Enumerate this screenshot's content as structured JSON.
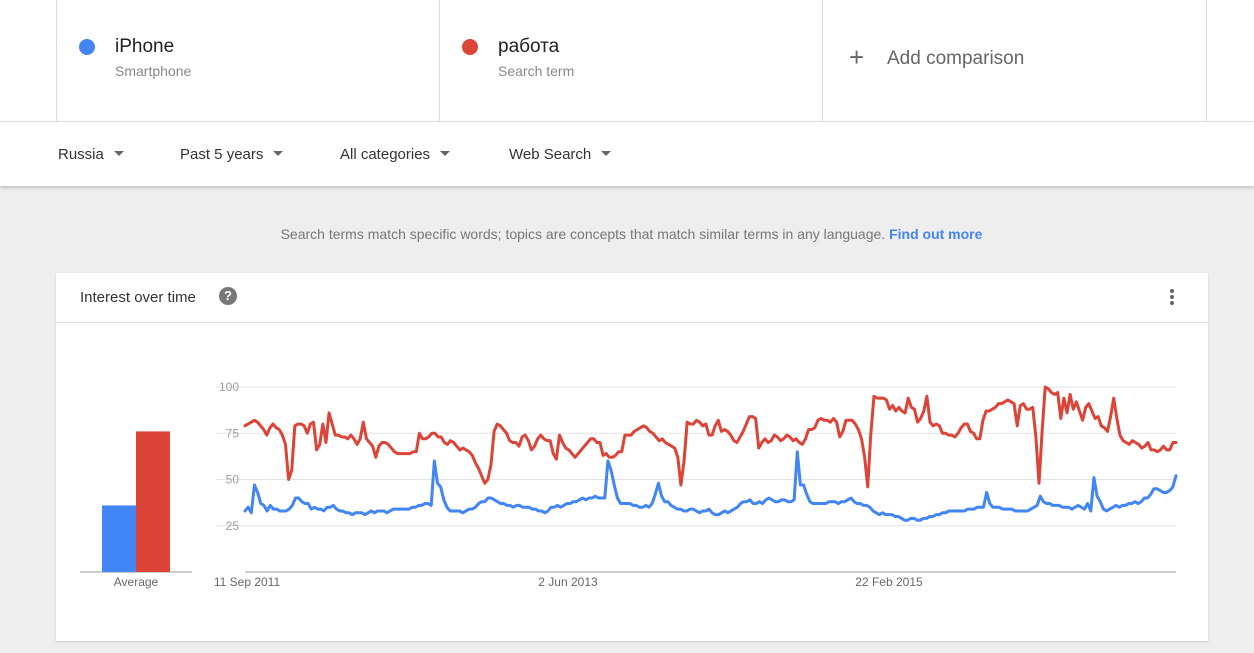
{
  "terms": [
    {
      "name": "iPhone",
      "type": "Smartphone",
      "color": "#4285f4"
    },
    {
      "name": "работа",
      "type": "Search term",
      "color": "#db4437"
    }
  ],
  "add_comparison": {
    "icon": "+",
    "label": "Add comparison"
  },
  "filters": [
    {
      "label": "Russia"
    },
    {
      "label": "Past 5 years"
    },
    {
      "label": "All categories"
    },
    {
      "label": "Web Search"
    }
  ],
  "notice": {
    "text": "Search terms match specific words; topics are concepts that match similar terms in any language.",
    "link": "Find out more"
  },
  "card": {
    "title": "Interest over time",
    "help_icon": "?"
  },
  "chart_data": {
    "type": "line",
    "title": "Interest over time",
    "ylim": [
      0,
      100
    ],
    "y_ticks": [
      25,
      50,
      75,
      100
    ],
    "x_ticks": [
      "11 Sep 2011",
      "2 Jun 2013",
      "22 Feb 2015"
    ],
    "grid": true,
    "averages": {
      "label": "Average",
      "values": [
        {
          "name": "iPhone",
          "value": 36
        },
        {
          "name": "работа",
          "value": 76
        }
      ]
    },
    "series": [
      {
        "name": "iPhone",
        "color": "#4285f4",
        "values": [
          33,
          35,
          32,
          47,
          43,
          37,
          36,
          33,
          36,
          34,
          34,
          33,
          33,
          33,
          34,
          36,
          40,
          40,
          38,
          37,
          37,
          34,
          35,
          34,
          34,
          33,
          35,
          35,
          36,
          34,
          33,
          33,
          32,
          32,
          31,
          32,
          32,
          32,
          31,
          32,
          33,
          32,
          33,
          33,
          33,
          32,
          33,
          34,
          34,
          34,
          34,
          34,
          34,
          35,
          35,
          36,
          36,
          37,
          37,
          36,
          60,
          48,
          46,
          39,
          35,
          33,
          33,
          33,
          33,
          32,
          33,
          34,
          34,
          35,
          37,
          38,
          38,
          40,
          40,
          39,
          38,
          37,
          37,
          36,
          36,
          35,
          36,
          36,
          35,
          35,
          35,
          34,
          34,
          33,
          33,
          32,
          33,
          35,
          35,
          36,
          35,
          36,
          37,
          37,
          38,
          38,
          39,
          40,
          39,
          40,
          40,
          41,
          40,
          40,
          40,
          60,
          55,
          47,
          40,
          37,
          37,
          37,
          37,
          36,
          36,
          35,
          35,
          36,
          35,
          37,
          42,
          48,
          41,
          38,
          38,
          36,
          35,
          34,
          34,
          33,
          33,
          34,
          34,
          33,
          32,
          33,
          33,
          34,
          32,
          31,
          31,
          32,
          33,
          32,
          33,
          34,
          35,
          37,
          38,
          38,
          39,
          37,
          37,
          38,
          37,
          39,
          40,
          39,
          38,
          38,
          39,
          39,
          38,
          38,
          39,
          65,
          47,
          47,
          42,
          38,
          37,
          37,
          37,
          37,
          37,
          38,
          38,
          38,
          37,
          38,
          38,
          39,
          40,
          38,
          37,
          37,
          36,
          36,
          35,
          33,
          32,
          31,
          32,
          31,
          31,
          31,
          30,
          30,
          29,
          28,
          28,
          29,
          29,
          28,
          28,
          29,
          29,
          30,
          30,
          31,
          31,
          32,
          32,
          33,
          33,
          33,
          33,
          33,
          33,
          34,
          34,
          34,
          35,
          35,
          35,
          43,
          37,
          35,
          35,
          35,
          34,
          34,
          34,
          34,
          33,
          33,
          33,
          33,
          33,
          34,
          35,
          36,
          41,
          38,
          37,
          37,
          36,
          36,
          36,
          35,
          35,
          35,
          34,
          35,
          36,
          35,
          34,
          37,
          33,
          51,
          41,
          38,
          34,
          33,
          34,
          35,
          36,
          35,
          36,
          36,
          37,
          37,
          38,
          37,
          38,
          40,
          40,
          42,
          45,
          45,
          44,
          43,
          43,
          44,
          46,
          52
        ]
      },
      {
        "name": "работа",
        "color": "#db4437",
        "values": [
          79,
          80,
          81,
          82,
          81,
          79,
          77,
          74,
          78,
          80,
          78,
          77,
          74,
          69,
          50,
          55,
          79,
          80,
          80,
          79,
          75,
          80,
          81,
          66,
          69,
          80,
          70,
          86,
          80,
          74,
          74,
          73,
          73,
          72,
          74,
          72,
          69,
          72,
          81,
          72,
          70,
          68,
          62,
          68,
          70,
          70,
          69,
          67,
          65,
          64,
          64,
          64,
          64,
          64,
          65,
          65,
          75,
          72,
          72,
          73,
          75,
          75,
          73,
          73,
          70,
          69,
          71,
          70,
          68,
          66,
          67,
          66,
          65,
          63,
          59,
          56,
          52,
          48,
          50,
          58,
          76,
          80,
          79,
          77,
          75,
          71,
          70,
          70,
          68,
          73,
          74,
          71,
          66,
          68,
          72,
          74,
          72,
          71,
          71,
          64,
          61,
          74,
          70,
          67,
          66,
          64,
          62,
          64,
          66,
          68,
          70,
          72,
          72,
          70,
          70,
          63,
          64,
          62,
          62,
          63,
          65,
          65,
          74,
          74,
          74,
          76,
          77,
          78,
          79,
          78,
          76,
          75,
          73,
          71,
          72,
          70,
          69,
          68,
          67,
          62,
          47,
          60,
          81,
          80,
          80,
          82,
          81,
          79,
          80,
          74,
          74,
          79,
          82,
          76,
          77,
          76,
          74,
          71,
          70,
          73,
          76,
          80,
          84,
          84,
          83,
          67,
          70,
          72,
          70,
          71,
          74,
          73,
          71,
          72,
          74,
          73,
          71,
          72,
          70,
          69,
          72,
          77,
          77,
          78,
          82,
          83,
          82,
          82,
          81,
          83,
          81,
          73,
          76,
          82,
          82,
          82,
          80,
          77,
          72,
          62,
          46,
          75,
          95,
          94,
          94,
          94,
          93,
          88,
          90,
          87,
          89,
          87,
          86,
          94,
          89,
          88,
          81,
          83,
          87,
          95,
          81,
          79,
          80,
          79,
          75,
          75,
          74,
          74,
          73,
          75,
          78,
          80,
          80,
          76,
          75,
          72,
          72,
          82,
          87,
          87,
          88,
          89,
          91,
          91,
          92,
          93,
          92,
          91,
          79,
          90,
          91,
          88,
          88,
          89,
          73,
          48,
          76,
          100,
          99,
          97,
          96,
          97,
          83,
          94,
          86,
          96,
          88,
          92,
          87,
          82,
          89,
          91,
          87,
          83,
          84,
          79,
          78,
          76,
          84,
          94,
          83,
          74,
          71,
          70,
          69,
          71,
          70,
          69,
          67,
          68,
          70,
          66,
          66,
          65,
          66,
          68,
          66,
          66,
          70,
          70
        ]
      }
    ]
  }
}
